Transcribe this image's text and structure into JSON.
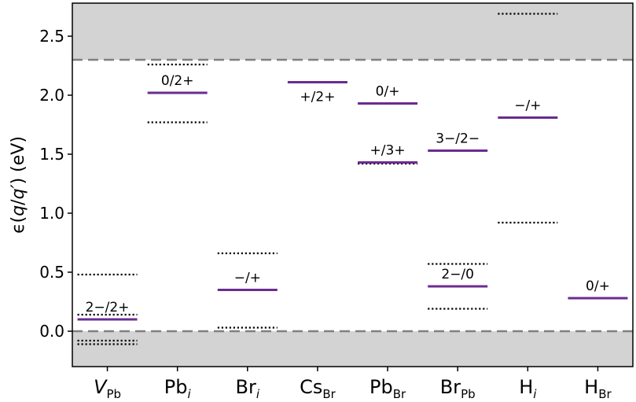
{
  "chart_data": {
    "type": "level-diagram",
    "ylabel": {
      "prefix": "ϵ(",
      "q1": "q",
      "slash": "/",
      "q2": "q′",
      "suffix": ") (eV)"
    },
    "ylim": [
      -0.3,
      2.78
    ],
    "yticks": [
      "0.0",
      "0.5",
      "1.0",
      "1.5",
      "2.0",
      "2.5"
    ],
    "grid": false,
    "band_edges": {
      "valence_max": 0.0,
      "conduction_min": 2.3
    },
    "colors": {
      "band_fill": "#d3d3d3",
      "band_edge": "#808080",
      "level": "#6a2c91",
      "dotted": "#000000"
    },
    "categories": [
      {
        "main": "V",
        "main_italic": true,
        "sub": "Pb",
        "sub_italic": false,
        "levels": [
          {
            "label": "2−/2+",
            "y": 0.1,
            "label_pos": "above"
          }
        ],
        "dotted": [
          0.48,
          0.14,
          -0.08,
          -0.11
        ]
      },
      {
        "main": "Pb",
        "main_italic": false,
        "sub": "i",
        "sub_italic": true,
        "levels": [
          {
            "label": "0/2+",
            "y": 2.02,
            "label_pos": "above"
          }
        ],
        "dotted": [
          2.26,
          1.77
        ]
      },
      {
        "main": "Br",
        "main_italic": false,
        "sub": "i",
        "sub_italic": true,
        "levels": [
          {
            "label": "−/+",
            "y": 0.35,
            "label_pos": "above"
          }
        ],
        "dotted": [
          0.66,
          0.03
        ]
      },
      {
        "main": "Cs",
        "main_italic": false,
        "sub": "Br",
        "sub_italic": false,
        "levels": [
          {
            "label": "+/2+",
            "y": 2.11,
            "label_pos": "below"
          }
        ],
        "dotted": []
      },
      {
        "main": "Pb",
        "main_italic": false,
        "sub": "Br",
        "sub_italic": false,
        "levels": [
          {
            "label": "0/+",
            "y": 1.93,
            "label_pos": "above"
          },
          {
            "label": "+/3+",
            "y": 1.43,
            "label_pos": "above"
          }
        ],
        "dotted": [
          1.42
        ]
      },
      {
        "main": "Br",
        "main_italic": false,
        "sub": "Pb",
        "sub_italic": false,
        "levels": [
          {
            "label": "3−/2−",
            "y": 1.53,
            "label_pos": "above"
          },
          {
            "label": "2−/0",
            "y": 0.38,
            "label_pos": "above"
          }
        ],
        "dotted": [
          0.57,
          0.19
        ]
      },
      {
        "main": "H",
        "main_italic": false,
        "sub": "i",
        "sub_italic": true,
        "levels": [
          {
            "label": "−/+",
            "y": 1.81,
            "label_pos": "above"
          }
        ],
        "dotted": [
          2.69,
          0.92
        ]
      },
      {
        "main": "H",
        "main_italic": false,
        "sub": "Br",
        "sub_italic": false,
        "levels": [
          {
            "label": "0/+",
            "y": 0.28,
            "label_pos": "above"
          }
        ],
        "dotted": []
      }
    ]
  }
}
